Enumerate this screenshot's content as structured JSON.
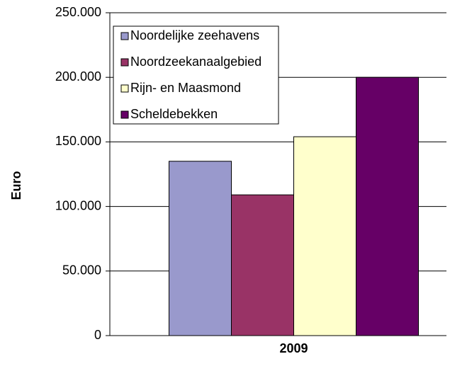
{
  "chart_data": {
    "type": "bar",
    "y_label": "Euro",
    "categories": [
      "2009"
    ],
    "series": [
      {
        "name": "Noordelijke zeehavens",
        "color": "#9999cc",
        "values": [
          135000
        ]
      },
      {
        "name": "Noordzeekanaalgebied",
        "color": "#993366",
        "values": [
          109000
        ]
      },
      {
        "name": "Rijn- en Maasmond",
        "color": "#ffffcc",
        "values": [
          154000
        ]
      },
      {
        "name": "Scheldebekken",
        "color": "#660066",
        "values": [
          200000
        ]
      }
    ],
    "ylim": [
      0,
      250000
    ],
    "yticks": [
      0,
      {
        "value": 50000,
        "label": "50.000"
      },
      {
        "value": 100000,
        "label": "100.000"
      },
      {
        "value": 150000,
        "label": "150.000"
      },
      {
        "value": 200000,
        "label": "200.000"
      },
      {
        "value": 250000,
        "label": "250.000"
      }
    ],
    "grid": true,
    "legend": "upper left"
  }
}
